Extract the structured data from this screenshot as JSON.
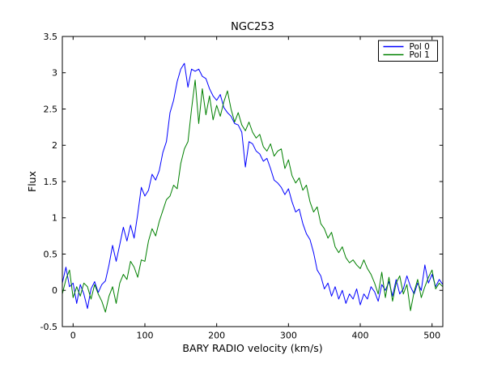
{
  "chart_data": {
    "type": "line",
    "title": "NGC253",
    "xlabel": "BARY RADIO velocity (km/s)",
    "ylabel": "Flux",
    "xlim": [
      -15,
      515
    ],
    "ylim": [
      -0.5,
      3.5
    ],
    "xticks": [
      0,
      100,
      200,
      300,
      400,
      500
    ],
    "xtick_labels": [
      "0",
      "100",
      "200",
      "300",
      "400",
      "500"
    ],
    "yticks": [
      -0.5,
      0,
      0.5,
      1,
      1.5,
      2,
      2.5,
      3,
      3.5
    ],
    "ytick_labels": [
      "-0.5",
      "0",
      "0.5",
      "1",
      "1.5",
      "2",
      "2.5",
      "3",
      "3.5"
    ],
    "grid": false,
    "legend": {
      "position": "upper right",
      "entries": [
        {
          "label": "Pol 0",
          "color": "#0000ff"
        },
        {
          "label": "Pol 1",
          "color": "#008000"
        }
      ]
    },
    "x": [
      -15,
      -10,
      -5,
      0,
      5,
      10,
      15,
      20,
      25,
      30,
      35,
      40,
      45,
      50,
      55,
      60,
      65,
      70,
      75,
      80,
      85,
      90,
      95,
      100,
      105,
      110,
      115,
      120,
      125,
      130,
      135,
      140,
      145,
      150,
      155,
      160,
      165,
      170,
      175,
      180,
      185,
      190,
      195,
      200,
      205,
      210,
      215,
      220,
      225,
      230,
      235,
      240,
      245,
      250,
      255,
      260,
      265,
      270,
      275,
      280,
      285,
      290,
      295,
      300,
      305,
      310,
      315,
      320,
      325,
      330,
      335,
      340,
      345,
      350,
      355,
      360,
      365,
      370,
      375,
      380,
      385,
      390,
      395,
      400,
      405,
      410,
      415,
      420,
      425,
      430,
      435,
      440,
      445,
      450,
      455,
      460,
      465,
      470,
      475,
      480,
      485,
      490,
      495,
      500,
      505,
      510,
      515
    ],
    "series": [
      {
        "name": "Pol 0",
        "color": "#0000ff",
        "values": [
          0.1,
          0.32,
          0.05,
          0.1,
          -0.18,
          0.08,
          -0.05,
          -0.25,
          0.02,
          0.12,
          -0.03,
          0.08,
          0.13,
          0.35,
          0.62,
          0.4,
          0.63,
          0.87,
          0.68,
          0.9,
          0.72,
          1.05,
          1.42,
          1.3,
          1.38,
          1.6,
          1.52,
          1.65,
          1.9,
          2.05,
          2.45,
          2.62,
          2.88,
          3.05,
          3.13,
          2.8,
          3.05,
          3.02,
          3.05,
          2.95,
          2.92,
          2.78,
          2.68,
          2.62,
          2.7,
          2.52,
          2.45,
          2.4,
          2.3,
          2.28,
          2.18,
          1.7,
          2.05,
          2.02,
          1.92,
          1.88,
          1.78,
          1.82,
          1.68,
          1.52,
          1.48,
          1.42,
          1.32,
          1.4,
          1.22,
          1.08,
          1.12,
          0.92,
          0.78,
          0.7,
          0.52,
          0.28,
          0.2,
          0.02,
          0.1,
          -0.08,
          0.05,
          -0.12,
          0.0,
          -0.18,
          -0.05,
          -0.12,
          0.02,
          -0.2,
          -0.05,
          -0.12,
          0.05,
          -0.02,
          -0.15,
          0.08,
          0.0,
          0.12,
          -0.08,
          0.15,
          -0.05,
          0.02,
          0.2,
          0.05,
          -0.05,
          0.1,
          0.0,
          0.35,
          0.1,
          0.22,
          0.05,
          0.15,
          0.08
        ]
      },
      {
        "name": "Pol 1",
        "color": "#008000",
        "values": [
          -0.05,
          0.15,
          0.28,
          -0.1,
          0.05,
          -0.08,
          0.1,
          0.05,
          -0.12,
          0.08,
          -0.05,
          -0.15,
          -0.3,
          -0.08,
          0.05,
          -0.18,
          0.1,
          0.22,
          0.15,
          0.4,
          0.32,
          0.18,
          0.42,
          0.4,
          0.68,
          0.85,
          0.75,
          0.95,
          1.1,
          1.25,
          1.3,
          1.45,
          1.4,
          1.75,
          1.95,
          2.05,
          2.5,
          2.9,
          2.3,
          2.78,
          2.42,
          2.68,
          2.35,
          2.55,
          2.4,
          2.6,
          2.75,
          2.5,
          2.32,
          2.45,
          2.28,
          2.2,
          2.32,
          2.18,
          2.1,
          2.15,
          1.98,
          1.92,
          2.02,
          1.85,
          1.92,
          1.95,
          1.68,
          1.8,
          1.58,
          1.48,
          1.55,
          1.38,
          1.45,
          1.22,
          1.08,
          1.15,
          0.92,
          0.85,
          0.72,
          0.8,
          0.6,
          0.52,
          0.6,
          0.45,
          0.38,
          0.42,
          0.35,
          0.3,
          0.42,
          0.3,
          0.22,
          0.1,
          -0.05,
          0.25,
          -0.1,
          0.18,
          -0.15,
          0.1,
          0.2,
          -0.05,
          0.08,
          -0.28,
          -0.02,
          0.15,
          -0.1,
          0.05,
          0.18,
          0.28,
          0.02,
          0.1,
          0.05
        ]
      }
    ]
  },
  "colors": {
    "background": "#ffffff",
    "axes": "#000000",
    "pol0": "#0000ff",
    "pol1": "#008000"
  }
}
